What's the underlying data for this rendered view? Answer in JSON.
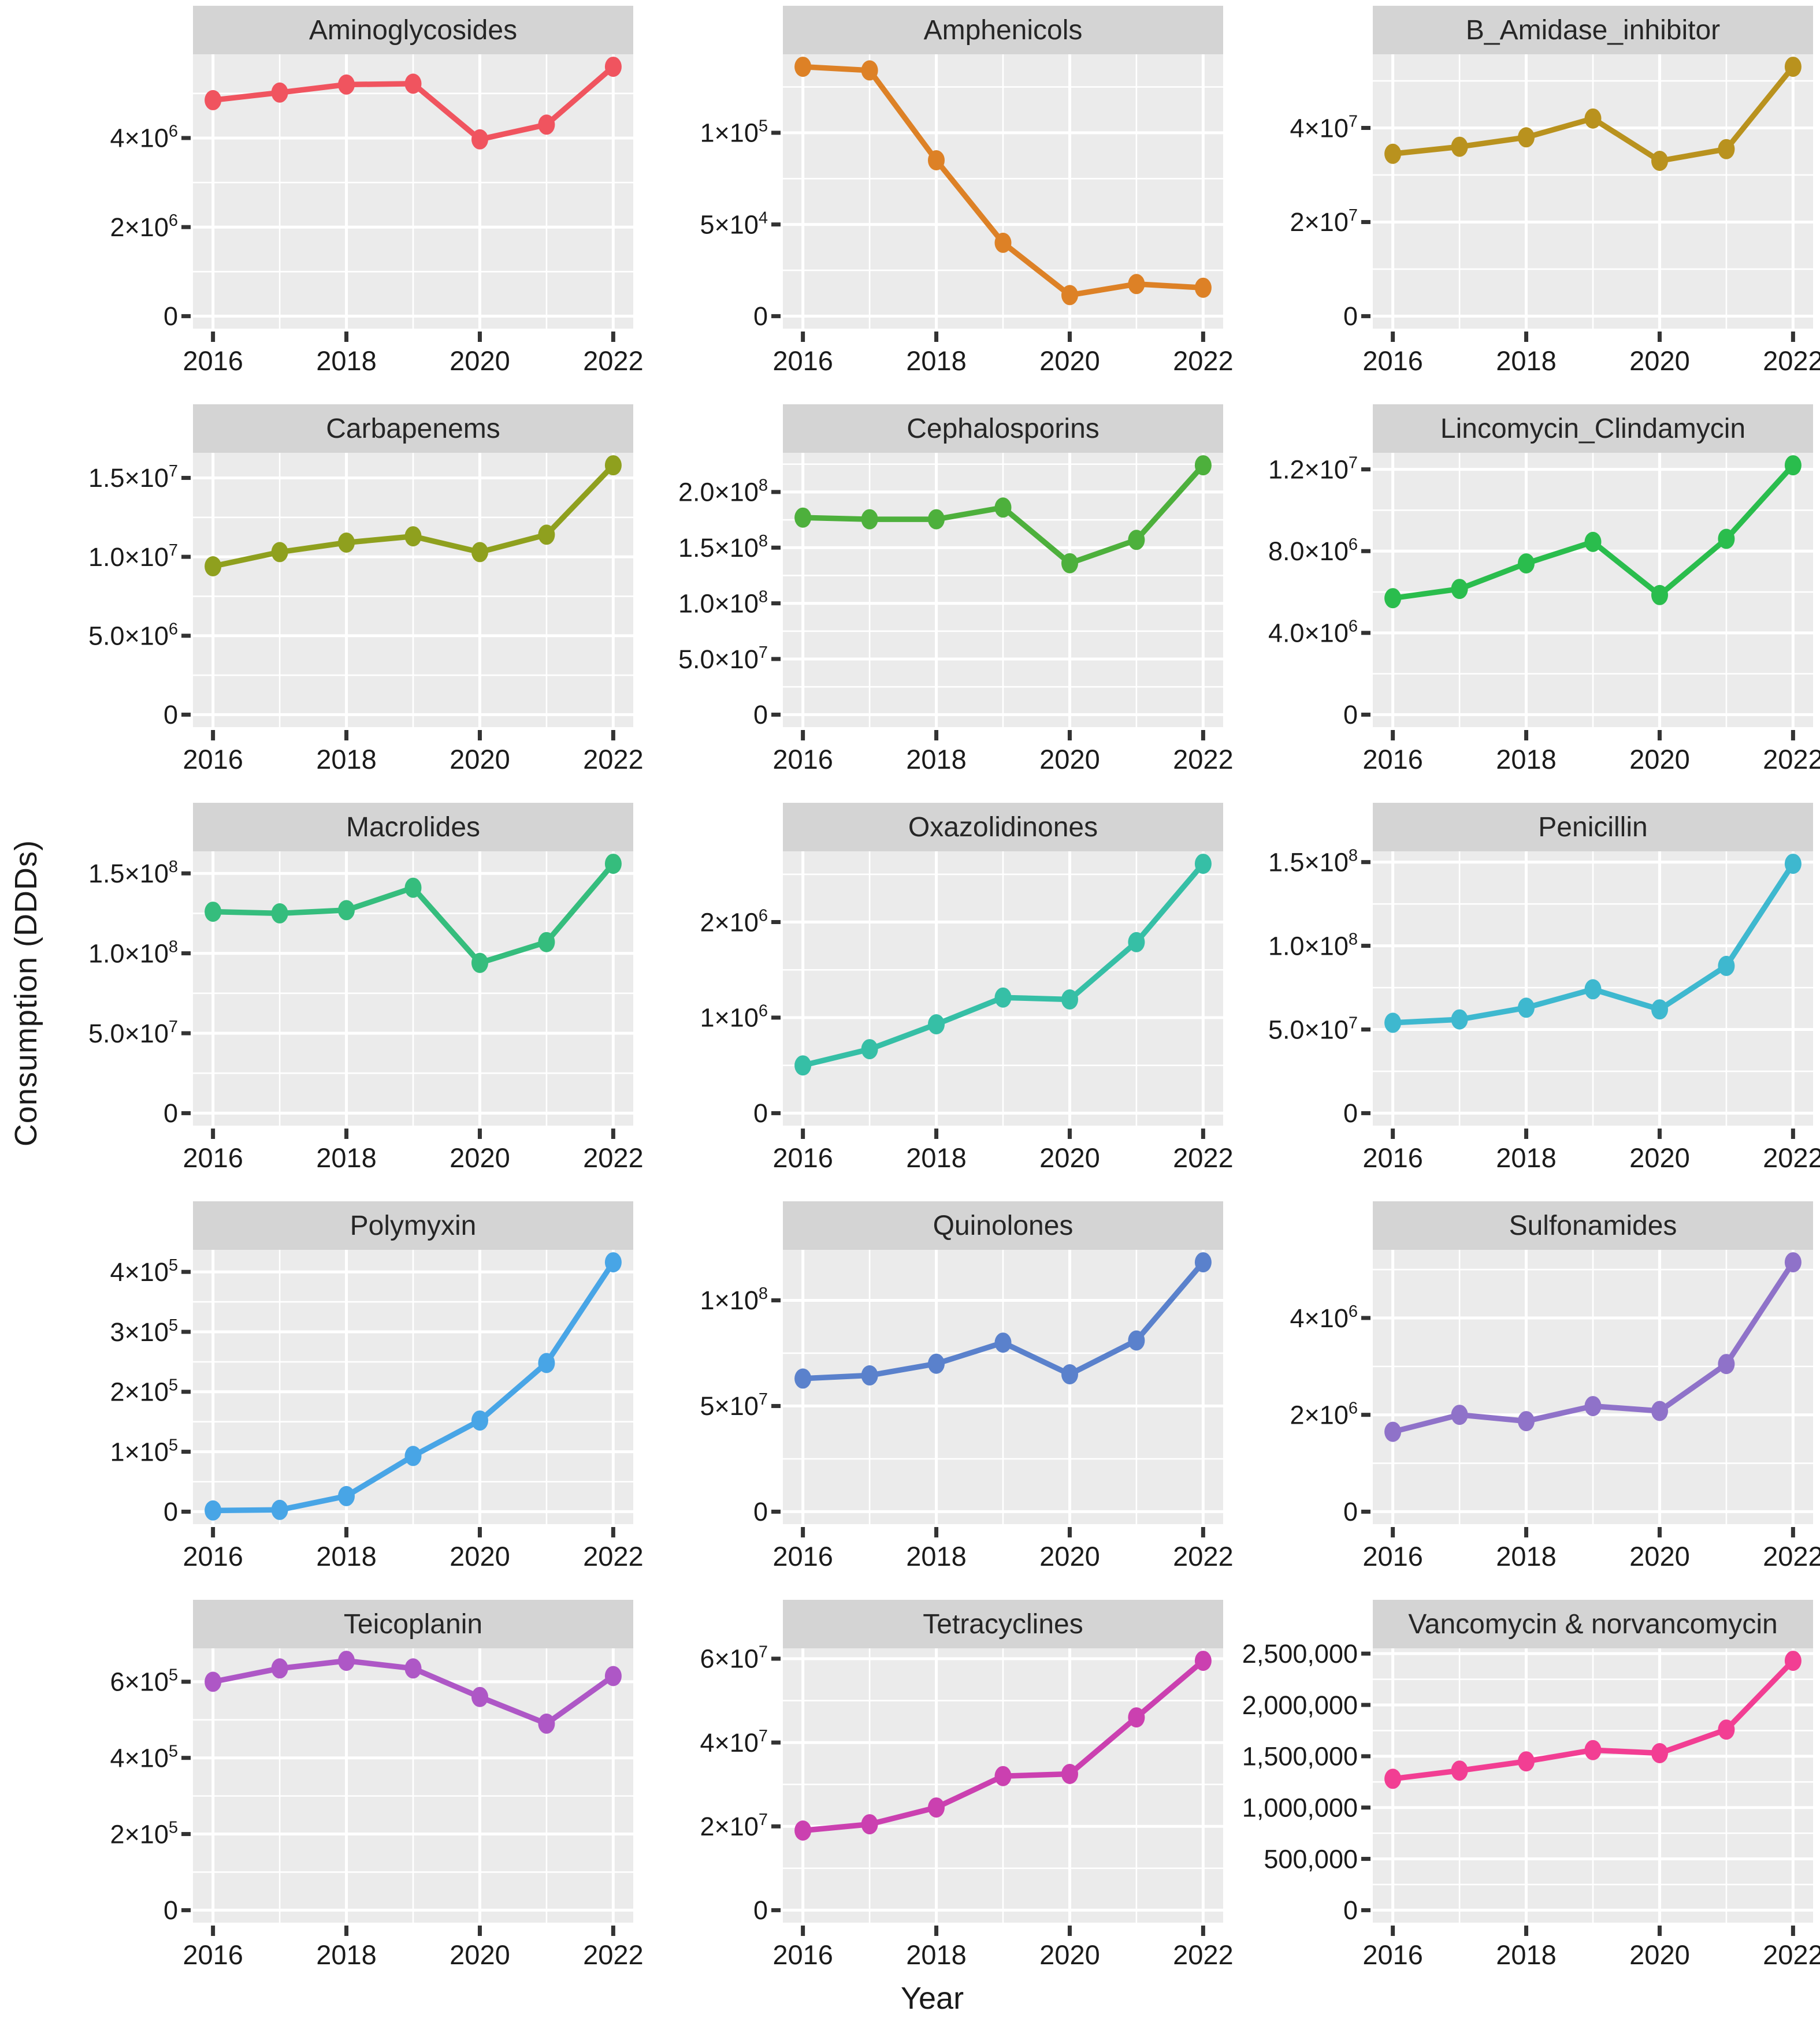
{
  "chart_data": {
    "type": "line",
    "xlabel": "Year",
    "ylabel": "Consumption (DDDs)",
    "x": [
      2016,
      2017,
      2018,
      2019,
      2020,
      2021,
      2022
    ],
    "x_major_ticks": [
      2016,
      2018,
      2020,
      2022
    ],
    "x_minor_gridlines": [
      2017,
      2019,
      2021
    ],
    "xlim": [
      2015.7,
      2022.3
    ],
    "grid": "white major and minor gridlines on gray panel",
    "legend_position": "none (one colored series per facet, titled strips)",
    "y_scale": "free per facet, from 0 with 5% expansion",
    "facets": [
      {
        "title": "Aminoglycosides",
        "color": "#F0545F",
        "values": [
          4850000,
          5020000,
          5200000,
          5220000,
          3970000,
          4300000,
          5600000
        ],
        "y_ticks": [
          0,
          2000000,
          4000000
        ],
        "y_tick_labels": [
          "0",
          "2×10^6",
          "4×10^6"
        ]
      },
      {
        "title": "Amphenicols",
        "color": "#DD8126",
        "values": [
          136000,
          134000,
          85000,
          40000,
          11500,
          17500,
          15500
        ],
        "y_ticks": [
          0,
          50000,
          100000
        ],
        "y_tick_labels": [
          "0",
          "5×10^4",
          "1×10^5"
        ]
      },
      {
        "title": "B_Amidase_inhibitor",
        "color": "#B9921E",
        "values": [
          34500000,
          36000000,
          38000000,
          42000000,
          33000000,
          35500000,
          53000000
        ],
        "y_ticks": [
          0,
          20000000,
          40000000
        ],
        "y_tick_labels": [
          "0",
          "2×10^7",
          "4×10^7"
        ]
      },
      {
        "title": "Carbapenems",
        "color": "#8FA01E",
        "values": [
          9400000,
          10300000,
          10900000,
          11300000,
          10300000,
          11400000,
          15800000
        ],
        "y_ticks": [
          0,
          5000000,
          10000000,
          15000000
        ],
        "y_tick_labels": [
          "0",
          "5.0×10^6",
          "1.0×10^7",
          "1.5×10^7"
        ]
      },
      {
        "title": "Cephalosporins",
        "color": "#4DB03C",
        "values": [
          177000000,
          175500000,
          175500000,
          186000000,
          136000000,
          157000000,
          224000000
        ],
        "y_ticks": [
          0,
          50000000,
          100000000,
          150000000,
          200000000
        ],
        "y_tick_labels": [
          "0",
          "5.0×10^7",
          "1.0×10^8",
          "1.5×10^8",
          "2.0×10^8"
        ]
      },
      {
        "title": "Lincomycin_Clindamycin",
        "color": "#2ABD4D",
        "values": [
          5700000,
          6150000,
          7400000,
          8450000,
          5850000,
          8600000,
          12200000
        ],
        "y_ticks": [
          0,
          4000000,
          8000000,
          12000000
        ],
        "y_tick_labels": [
          "0",
          "4.0×10^6",
          "8.0×10^6",
          "1.2×10^7"
        ]
      },
      {
        "title": "Macrolides",
        "color": "#35BD7D",
        "values": [
          126000000,
          125000000,
          127000000,
          141000000,
          94000000,
          107000000,
          156000000
        ],
        "y_ticks": [
          0,
          50000000,
          100000000,
          150000000
        ],
        "y_tick_labels": [
          "0",
          "5.0×10^7",
          "1.0×10^8",
          "1.5×10^8"
        ]
      },
      {
        "title": "Oxazolidinones",
        "color": "#36BFA6",
        "values": [
          500000,
          670000,
          930000,
          1210000,
          1190000,
          1790000,
          2610000
        ],
        "y_ticks": [
          0,
          1000000,
          2000000
        ],
        "y_tick_labels": [
          "0",
          "1×10^6",
          "2×10^6"
        ]
      },
      {
        "title": "Penicillin",
        "color": "#3EB8CF",
        "values": [
          54000000,
          56000000,
          63000000,
          74000000,
          62000000,
          88000000,
          149000000
        ],
        "y_ticks": [
          0,
          50000000,
          100000000,
          150000000
        ],
        "y_tick_labels": [
          "0",
          "5.0×10^7",
          "1.0×10^8",
          "1.5×10^8"
        ]
      },
      {
        "title": "Polymyxin",
        "color": "#48A5E6",
        "values": [
          2000,
          3000,
          26000,
          93000,
          152000,
          248000,
          416000
        ],
        "y_ticks": [
          0,
          100000,
          200000,
          300000,
          400000
        ],
        "y_tick_labels": [
          "0",
          "1×10^5",
          "2×10^5",
          "3×10^5",
          "4×10^5"
        ]
      },
      {
        "title": "Quinolones",
        "color": "#5A81CC",
        "values": [
          63000000,
          64500000,
          70000000,
          80000000,
          65000000,
          81000000,
          118000000
        ],
        "y_ticks": [
          0,
          50000000,
          100000000
        ],
        "y_tick_labels": [
          "0",
          "5×10^7",
          "1×10^8"
        ]
      },
      {
        "title": "Sulfonamides",
        "color": "#8F72C9",
        "values": [
          1650000,
          2000000,
          1870000,
          2180000,
          2080000,
          3050000,
          5150000
        ],
        "y_ticks": [
          0,
          2000000,
          4000000
        ],
        "y_tick_labels": [
          "0",
          "2×10^6",
          "4×10^6"
        ]
      },
      {
        "title": "Teicoplanin",
        "color": "#AE57C6",
        "values": [
          600000,
          635000,
          655000,
          635000,
          560000,
          490000,
          615000
        ],
        "y_ticks": [
          0,
          200000,
          400000,
          600000
        ],
        "y_tick_labels": [
          "0",
          "2×10^5",
          "4×10^5",
          "6×10^5"
        ]
      },
      {
        "title": "Tetracyclines",
        "color": "#CB40B0",
        "values": [
          19000000,
          20500000,
          24500000,
          32000000,
          32500000,
          46000000,
          59500000
        ],
        "y_ticks": [
          0,
          20000000,
          40000000,
          60000000
        ],
        "y_tick_labels": [
          "0",
          "2×10^7",
          "4×10^7",
          "6×10^7"
        ]
      },
      {
        "title": "Vancomycin & norvancomycin",
        "color": "#F23E93",
        "values": [
          1280000,
          1360000,
          1450000,
          1560000,
          1530000,
          1760000,
          2430000
        ],
        "y_ticks": [
          0,
          500000,
          1000000,
          1500000,
          2000000,
          2500000
        ],
        "y_tick_labels": [
          "0",
          "500,000",
          "1,000,000",
          "1,500,000",
          "2,000,000",
          "2,500,000"
        ]
      }
    ]
  },
  "style": {
    "strip_fill": "#D4D4D4",
    "panel_fill": "#EBEBEB",
    "gridline_color": "#FFFFFF",
    "text_color": "#1a1a1a",
    "tick_mark_color": "#333333",
    "background": "#FFFFFF"
  }
}
